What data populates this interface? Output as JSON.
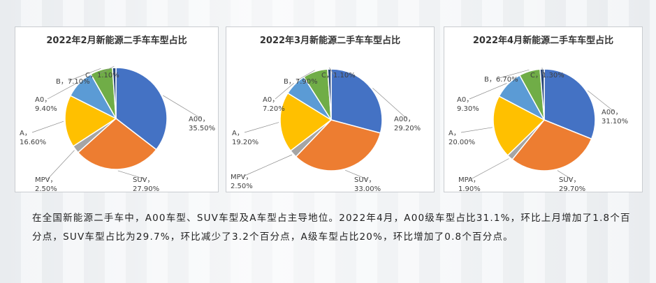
{
  "chart_data": [
    {
      "type": "pie",
      "title": "2022年2月新能源二手车车型占比",
      "slices": [
        {
          "name": "A00",
          "value": 35.5,
          "label": "35.50%",
          "color": "#4472C4"
        },
        {
          "name": "SUV",
          "value": 27.9,
          "label": "27.90%",
          "color": "#ED7D31"
        },
        {
          "name": "MPV",
          "value": 2.5,
          "label": "2.50%",
          "color": "#A5A5A5"
        },
        {
          "name": "A",
          "value": 16.6,
          "label": "16.60%",
          "color": "#FFC000"
        },
        {
          "name": "A0",
          "value": 9.4,
          "label": "9.40%",
          "color": "#5B9BD5"
        },
        {
          "name": "B",
          "value": 7.1,
          "label": "7.10%",
          "color": "#70AD47"
        },
        {
          "name": "C",
          "value": 1.1,
          "label": "1.10%",
          "color": "#264478"
        }
      ]
    },
    {
      "type": "pie",
      "title": "2022年3月新能源二手车车型占比",
      "slices": [
        {
          "name": "A00",
          "value": 29.2,
          "label": "29.20%",
          "color": "#4472C4"
        },
        {
          "name": "SUV",
          "value": 33.0,
          "label": "33.00%",
          "color": "#ED7D31"
        },
        {
          "name": "MPV",
          "value": 2.5,
          "label": "2.50%",
          "color": "#A5A5A5"
        },
        {
          "name": "A",
          "value": 19.2,
          "label": "19.20%",
          "color": "#FFC000"
        },
        {
          "name": "A0",
          "value": 7.2,
          "label": "7.20%",
          "color": "#5B9BD5"
        },
        {
          "name": "B",
          "value": 7.9,
          "label": "7.90%",
          "color": "#70AD47"
        },
        {
          "name": "C",
          "value": 1.1,
          "label": "1.10%",
          "color": "#264478"
        }
      ]
    },
    {
      "type": "pie",
      "title": "2022年4月新能源二手车车型占比",
      "slices": [
        {
          "name": "A00",
          "value": 31.1,
          "label": "31.10%",
          "color": "#4472C4"
        },
        {
          "name": "SUV",
          "value": 29.7,
          "label": "29.70%",
          "color": "#ED7D31"
        },
        {
          "name": "MPA",
          "value": 1.9,
          "label": "1.90%",
          "color": "#A5A5A5"
        },
        {
          "name": "A",
          "value": 20.0,
          "label": "20.00%",
          "color": "#FFC000"
        },
        {
          "name": "A0",
          "value": 9.3,
          "label": "9.30%",
          "color": "#5B9BD5"
        },
        {
          "name": "B",
          "value": 6.7,
          "label": "6.70%",
          "color": "#70AD47"
        },
        {
          "name": "C",
          "value": 1.3,
          "label": "1.30%",
          "color": "#264478"
        }
      ]
    }
  ],
  "description": "在全国新能源二手车中，A00车型、SUV车型及A车型占主导地位。2022年4月，A00级车型占比31.1%，环比上月增加了1.8个百分点，SUV车型占比为29.7%，环比减少了3.2个百分点，A级车型占比20%，环比增加了0.8个百分点。"
}
